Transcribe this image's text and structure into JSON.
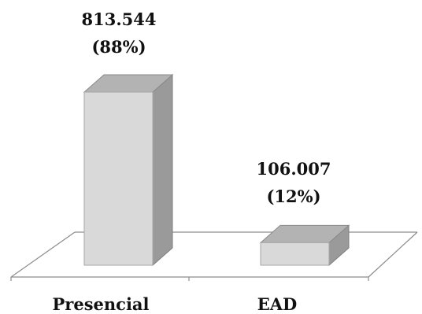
{
  "chart_data": {
    "type": "bar",
    "categories": [
      "Presencial",
      "EAD"
    ],
    "values": [
      813544,
      106007
    ],
    "data_labels": [
      {
        "value_text": "813.544",
        "percent_text": "(88%)"
      },
      {
        "value_text": "106.007",
        "percent_text": "(12%)"
      }
    ],
    "percentages": [
      88,
      12
    ],
    "title": "",
    "xlabel": "",
    "ylabel": "",
    "ylim": [
      0,
      813544
    ],
    "grid": false,
    "legend": "none",
    "style": "3d",
    "colors": {
      "bar_front": "#d9d9d9",
      "bar_side": "#9a9a9a",
      "bar_top": "#b3b3b3",
      "floor_line": "#8c8c8c",
      "text": "#111111"
    }
  }
}
